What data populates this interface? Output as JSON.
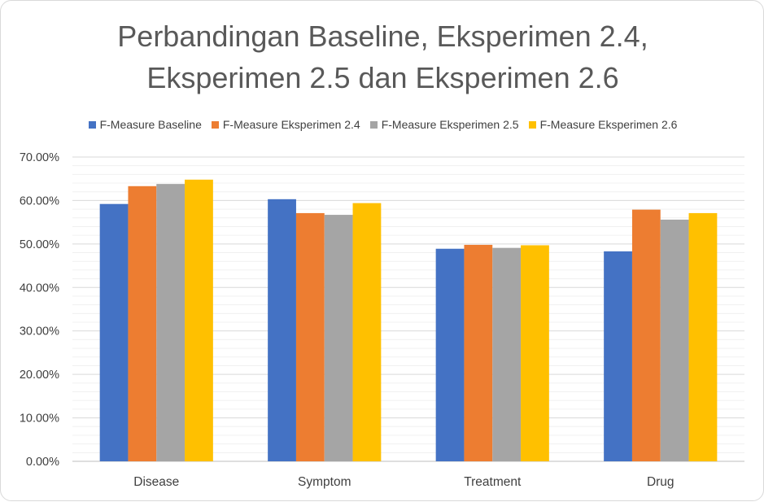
{
  "chart_data": {
    "type": "bar",
    "title_lines": [
      "Perbandingan Baseline, Eksperimen 2.4,",
      "Eksperimen 2.5 dan Eksperimen 2.6"
    ],
    "categories": [
      "Disease",
      "Symptom",
      "Treatment",
      "Drug"
    ],
    "series": [
      {
        "name": "F-Measure Baseline",
        "color": "#4472c4",
        "values": [
          59.2,
          60.3,
          48.9,
          48.3
        ]
      },
      {
        "name": "F-Measure Eksperimen 2.4",
        "color": "#ed7d31",
        "values": [
          63.3,
          57.1,
          49.8,
          57.9
        ]
      },
      {
        "name": "F-Measure Eksperimen 2.5",
        "color": "#a5a5a5",
        "values": [
          63.8,
          56.7,
          49.1,
          55.6
        ]
      },
      {
        "name": "F-Measure Eksperimen 2.6",
        "color": "#ffc000",
        "values": [
          64.8,
          59.4,
          49.7,
          57.1
        ]
      }
    ],
    "y_ticks": [
      "0.00%",
      "10.00%",
      "20.00%",
      "30.00%",
      "40.00%",
      "50.00%",
      "60.00%",
      "70.00%"
    ],
    "ylim": [
      0,
      70
    ],
    "legend_position": "top",
    "gridlines": true,
    "minor_gridlines": true
  }
}
